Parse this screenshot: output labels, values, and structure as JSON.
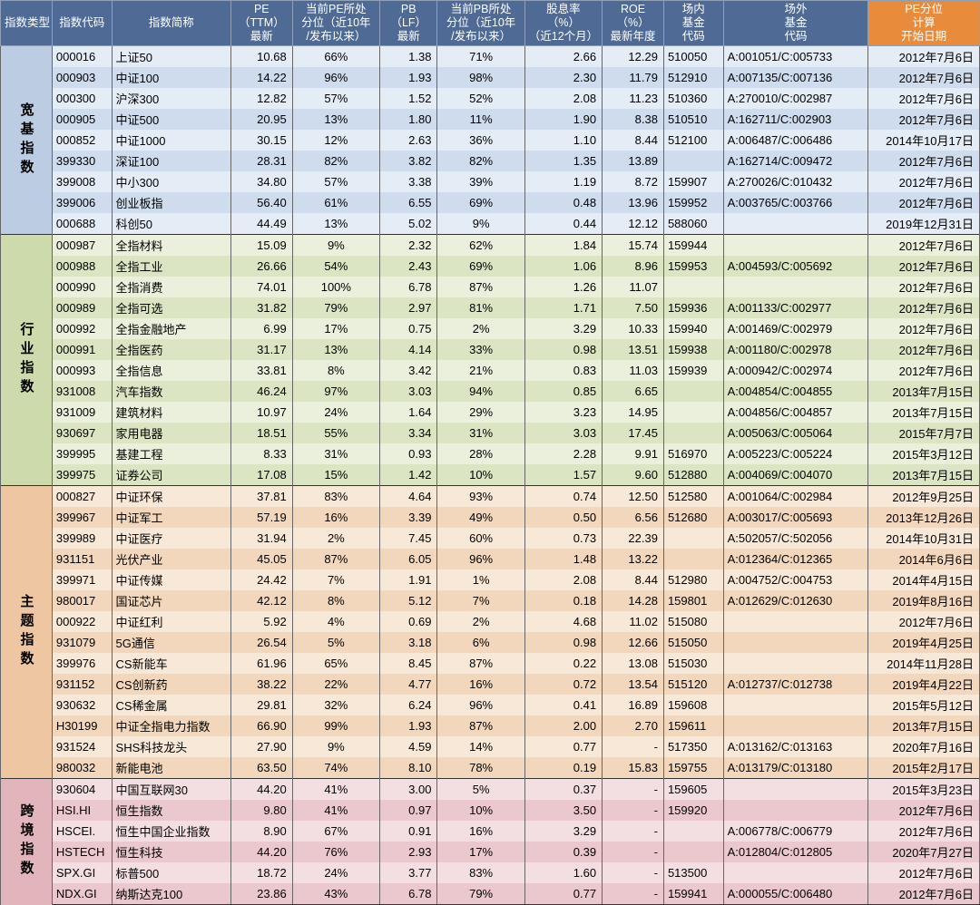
{
  "headers": {
    "c0": "指数类型",
    "c1": "指数代码",
    "c2": "指数简称",
    "c3": "PE\n（TTM）\n最新",
    "c4": "当前PE所处\n分位（近10年\n/发布以来）",
    "c5": "PB\n（LF）\n最新",
    "c6": "当前PB所处\n分位（近10年\n/发布以来）",
    "c7": "股息率\n（%）\n（近12个月）",
    "c8": "ROE\n（%）\n最新年度",
    "c9": "场内\n基金\n代码",
    "c10": "场外\n基金\n代码",
    "c11": "PE分位\n计算\n开始日期"
  },
  "colors": {
    "header_bg": "#4f6a95",
    "header_orange": "#e88c3c",
    "g1_even": "#e4ecf5",
    "g1_odd": "#cfdced",
    "g1_cat": "#bccce3",
    "g2_even": "#eaf0dc",
    "g2_odd": "#dbe5c3",
    "g2_cat": "#cddaac",
    "g3_even": "#f8e8d8",
    "g3_odd": "#f3d7bc",
    "g3_cat": "#eec7a2",
    "g4_even": "#f3dfe2",
    "g4_odd": "#eac8cd",
    "g4_cat": "#e2b4bb"
  },
  "groups": [
    {
      "name": "宽基指数",
      "cat": "g1",
      "rows": [
        [
          "000016",
          "上证50",
          "10.68",
          "66%",
          "1.38",
          "71%",
          "2.66",
          "12.29",
          "510050",
          "A:001051/C:005733",
          "2012年7月6日"
        ],
        [
          "000903",
          "中证100",
          "14.22",
          "96%",
          "1.93",
          "98%",
          "2.30",
          "11.79",
          "512910",
          "A:007135/C:007136",
          "2012年7月6日"
        ],
        [
          "000300",
          "沪深300",
          "12.82",
          "57%",
          "1.52",
          "52%",
          "2.08",
          "11.23",
          "510360",
          "A:270010/C:002987",
          "2012年7月6日"
        ],
        [
          "000905",
          "中证500",
          "20.95",
          "13%",
          "1.80",
          "11%",
          "1.90",
          "8.38",
          "510510",
          "A:162711/C:002903",
          "2012年7月6日"
        ],
        [
          "000852",
          "中证1000",
          "30.15",
          "12%",
          "2.63",
          "36%",
          "1.10",
          "8.44",
          "512100",
          "A:006487/C:006486",
          "2014年10月17日"
        ],
        [
          "399330",
          "深证100",
          "28.31",
          "82%",
          "3.82",
          "82%",
          "1.35",
          "13.89",
          "",
          "A:162714/C:009472",
          "2012年7月6日"
        ],
        [
          "399008",
          "中小300",
          "34.80",
          "57%",
          "3.38",
          "39%",
          "1.19",
          "8.72",
          "159907",
          "A:270026/C:010432",
          "2012年7月6日"
        ],
        [
          "399006",
          "创业板指",
          "56.40",
          "61%",
          "6.55",
          "69%",
          "0.48",
          "13.96",
          "159952",
          "A:003765/C:003766",
          "2012年7月6日"
        ],
        [
          "000688",
          "科创50",
          "44.49",
          "13%",
          "5.02",
          "9%",
          "0.44",
          "12.12",
          "588060",
          "",
          "2019年12月31日"
        ]
      ]
    },
    {
      "name": "行业指数",
      "cat": "g2",
      "rows": [
        [
          "000987",
          "全指材料",
          "15.09",
          "9%",
          "2.32",
          "62%",
          "1.84",
          "15.74",
          "159944",
          "",
          "2012年7月6日"
        ],
        [
          "000988",
          "全指工业",
          "26.66",
          "54%",
          "2.43",
          "69%",
          "1.06",
          "8.96",
          "159953",
          "A:004593/C:005692",
          "2012年7月6日"
        ],
        [
          "000990",
          "全指消费",
          "74.01",
          "100%",
          "6.78",
          "87%",
          "1.26",
          "11.07",
          "",
          "",
          "2012年7月6日"
        ],
        [
          "000989",
          "全指可选",
          "31.82",
          "79%",
          "2.97",
          "81%",
          "1.71",
          "7.50",
          "159936",
          "A:001133/C:002977",
          "2012年7月6日"
        ],
        [
          "000992",
          "全指金融地产",
          "6.99",
          "17%",
          "0.75",
          "2%",
          "3.29",
          "10.33",
          "159940",
          "A:001469/C:002979",
          "2012年7月6日"
        ],
        [
          "000991",
          "全指医药",
          "31.17",
          "13%",
          "4.14",
          "33%",
          "0.98",
          "13.51",
          "159938",
          "A:001180/C:002978",
          "2012年7月6日"
        ],
        [
          "000993",
          "全指信息",
          "33.81",
          "8%",
          "3.42",
          "21%",
          "0.83",
          "11.03",
          "159939",
          "A:000942/C:002974",
          "2012年7月6日"
        ],
        [
          "931008",
          "汽车指数",
          "46.24",
          "97%",
          "3.03",
          "94%",
          "0.85",
          "6.65",
          "",
          "A:004854/C:004855",
          "2013年7月15日"
        ],
        [
          "931009",
          "建筑材料",
          "10.97",
          "24%",
          "1.64",
          "29%",
          "3.23",
          "14.95",
          "",
          "A:004856/C:004857",
          "2013年7月15日"
        ],
        [
          "930697",
          "家用电器",
          "18.51",
          "55%",
          "3.34",
          "31%",
          "3.03",
          "17.45",
          "",
          "A:005063/C:005064",
          "2015年7月7日"
        ],
        [
          "399995",
          "基建工程",
          "8.33",
          "31%",
          "0.93",
          "28%",
          "2.28",
          "9.91",
          "516970",
          "A:005223/C:005224",
          "2015年3月12日"
        ],
        [
          "399975",
          "证券公司",
          "17.08",
          "15%",
          "1.42",
          "10%",
          "1.57",
          "9.60",
          "512880",
          "A:004069/C:004070",
          "2013年7月15日"
        ]
      ]
    },
    {
      "name": "主题指数",
      "cat": "g3",
      "rows": [
        [
          "000827",
          "中证环保",
          "37.81",
          "83%",
          "4.64",
          "93%",
          "0.74",
          "12.50",
          "512580",
          "A:001064/C:002984",
          "2012年9月25日"
        ],
        [
          "399967",
          "中证军工",
          "57.19",
          "16%",
          "3.39",
          "49%",
          "0.50",
          "6.56",
          "512680",
          "A:003017/C:005693",
          "2013年12月26日"
        ],
        [
          "399989",
          "中证医疗",
          "31.94",
          "2%",
          "7.45",
          "60%",
          "0.73",
          "22.39",
          "",
          "A:502057/C:502056",
          "2014年10月31日"
        ],
        [
          "931151",
          "光伏产业",
          "45.05",
          "87%",
          "6.05",
          "96%",
          "1.48",
          "13.22",
          "",
          "A:012364/C:012365",
          "2014年6月6日"
        ],
        [
          "399971",
          "中证传媒",
          "24.42",
          "7%",
          "1.91",
          "1%",
          "2.08",
          "8.44",
          "512980",
          "A:004752/C:004753",
          "2014年4月15日"
        ],
        [
          "980017",
          "国证芯片",
          "42.12",
          "8%",
          "5.12",
          "7%",
          "0.18",
          "14.28",
          "159801",
          "A:012629/C:012630",
          "2019年8月16日"
        ],
        [
          "000922",
          "中证红利",
          "5.92",
          "4%",
          "0.69",
          "2%",
          "4.68",
          "11.02",
          "515080",
          "",
          "2012年7月6日"
        ],
        [
          "931079",
          "5G通信",
          "26.54",
          "5%",
          "3.18",
          "6%",
          "0.98",
          "12.66",
          "515050",
          "",
          "2019年4月25日"
        ],
        [
          "399976",
          "CS新能车",
          "61.96",
          "65%",
          "8.45",
          "87%",
          "0.22",
          "13.08",
          "515030",
          "",
          "2014年11月28日"
        ],
        [
          "931152",
          "CS创新药",
          "38.22",
          "22%",
          "4.77",
          "16%",
          "0.72",
          "13.54",
          "515120",
          "A:012737/C:012738",
          "2019年4月22日"
        ],
        [
          "930632",
          "CS稀金属",
          "29.81",
          "32%",
          "6.24",
          "96%",
          "0.41",
          "16.89",
          "159608",
          "",
          "2015年5月12日"
        ],
        [
          "H30199",
          "中证全指电力指数",
          "66.90",
          "99%",
          "1.93",
          "87%",
          "2.00",
          "2.70",
          "159611",
          "",
          "2013年7月15日"
        ],
        [
          "931524",
          "SHS科技龙头",
          "27.90",
          "9%",
          "4.59",
          "14%",
          "0.77",
          "-",
          "517350",
          "A:013162/C:013163",
          "2020年7月16日"
        ],
        [
          "980032",
          "新能电池",
          "63.50",
          "74%",
          "8.10",
          "78%",
          "0.19",
          "15.83",
          "159755",
          "A:013179/C:013180",
          "2015年2月17日"
        ]
      ]
    },
    {
      "name": "跨境指数",
      "cat": "g4",
      "rows": [
        [
          "930604",
          "中国互联网30",
          "44.20",
          "41%",
          "3.00",
          "5%",
          "0.37",
          "-",
          "159605",
          "",
          "2015年3月23日"
        ],
        [
          "HSI.HI",
          "恒生指数",
          "9.80",
          "41%",
          "0.97",
          "10%",
          "3.50",
          "-",
          "159920",
          "",
          "2012年7月6日"
        ],
        [
          "HSCEI.",
          "恒生中国企业指数",
          "8.90",
          "67%",
          "0.91",
          "16%",
          "3.29",
          "-",
          "",
          "A:006778/C:006779",
          "2012年7月6日"
        ],
        [
          "HSTECH",
          "恒生科技",
          "44.20",
          "76%",
          "2.93",
          "17%",
          "0.39",
          "-",
          "",
          "A:012804/C:012805",
          "2020年7月27日"
        ],
        [
          "SPX.GI",
          "标普500",
          "18.72",
          "24%",
          "3.77",
          "83%",
          "1.60",
          "-",
          "513500",
          "",
          "2012年7月6日"
        ],
        [
          "NDX.GI",
          "纳斯达克100",
          "23.86",
          "43%",
          "6.78",
          "79%",
          "0.77",
          "-",
          "159941",
          "A:000055/C:006480",
          "2012年7月6日"
        ]
      ]
    }
  ]
}
